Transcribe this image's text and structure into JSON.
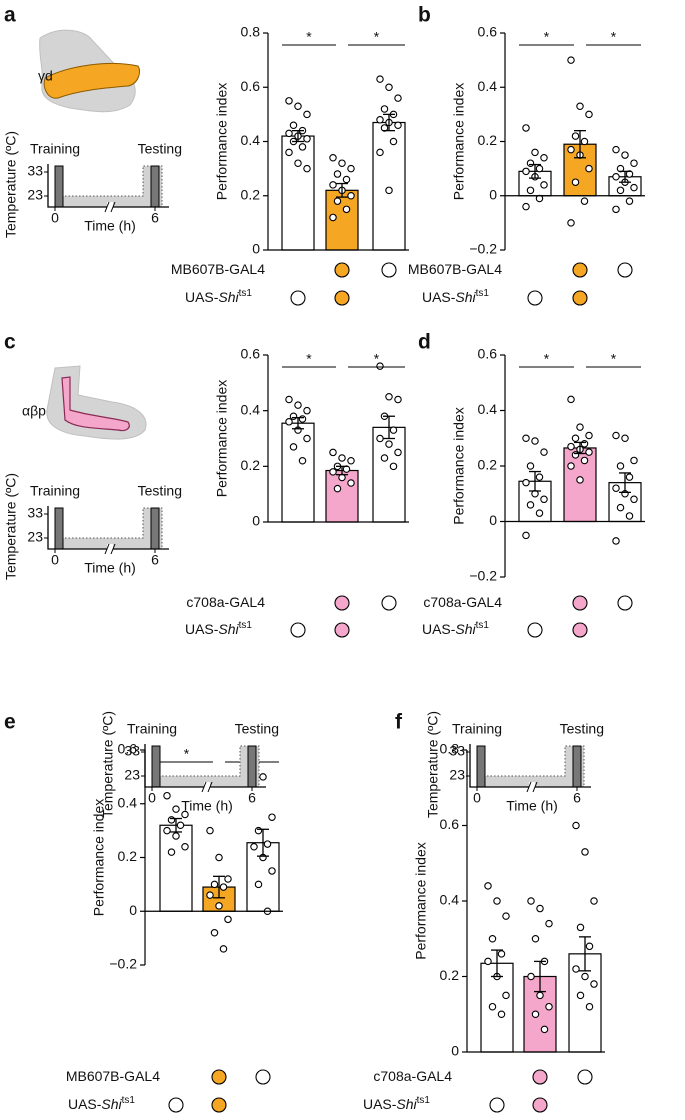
{
  "chart_data": [
    {
      "type": "bar",
      "panel": "a",
      "ylabel": "Performance index",
      "ylim": [
        0,
        0.8
      ],
      "yticks": [
        0,
        0.2,
        0.4,
        0.6,
        0.8
      ],
      "colors": [
        "#ffffff",
        "#f5a623",
        "#ffffff"
      ],
      "values": [
        0.42,
        0.22,
        0.47
      ],
      "errors": [
        0.02,
        0.025,
        0.03
      ],
      "points": [
        [
          0.55,
          0.53,
          0.5,
          0.46,
          0.44,
          0.43,
          0.42,
          0.41,
          0.4,
          0.38,
          0.36,
          0.32,
          0.3
        ],
        [
          0.34,
          0.32,
          0.3,
          0.28,
          0.26,
          0.24,
          0.22,
          0.2,
          0.18,
          0.15,
          0.12
        ],
        [
          0.63,
          0.6,
          0.56,
          0.52,
          0.5,
          0.48,
          0.47,
          0.46,
          0.45,
          0.4,
          0.36,
          0.22
        ]
      ],
      "significance": [
        {
          "pair": [
            0,
            1
          ],
          "label": "*"
        },
        {
          "pair": [
            1,
            2
          ],
          "label": "*"
        }
      ],
      "genotypes": [
        {
          "label_parts": [
            "MB607B-GAL4"
          ],
          "present": [
            false,
            true,
            true
          ]
        },
        {
          "label_parts": [
            "UAS-",
            "Shi",
            "ts1"
          ],
          "present": [
            true,
            true,
            false
          ]
        }
      ],
      "brain_label": "γd",
      "schematic": {
        "ylabel": "Temperature (ºC)",
        "xlabel": "Time (h)",
        "left": "Training",
        "right": "Testing",
        "yticks": [
          23,
          33
        ],
        "xticks": [
          0,
          6
        ]
      }
    },
    {
      "type": "bar",
      "panel": "b",
      "ylabel": "Performance index",
      "ylim": [
        -0.2,
        0.6
      ],
      "yticks": [
        {
          "value": -0.2,
          "label": "−0.2"
        },
        0,
        0.2,
        0.4,
        0.6
      ],
      "colors": [
        "#ffffff",
        "#f5a623",
        "#ffffff"
      ],
      "values": [
        0.09,
        0.19,
        0.07
      ],
      "errors": [
        0.025,
        0.05,
        0.02
      ],
      "points": [
        [
          0.25,
          0.16,
          0.14,
          0.12,
          0.1,
          0.09,
          0.07,
          0.04,
          0.02,
          -0.01,
          -0.04
        ],
        [
          0.5,
          0.33,
          0.3,
          0.22,
          0.2,
          0.17,
          0.15,
          0.1,
          0.05,
          -0.02,
          -0.1
        ],
        [
          0.17,
          0.15,
          0.12,
          0.1,
          0.08,
          0.07,
          0.05,
          0.03,
          0.02,
          -0.02,
          -0.05
        ]
      ],
      "significance": [
        {
          "pair": [
            0,
            1
          ],
          "label": "*"
        },
        {
          "pair": [
            1,
            2
          ],
          "label": "*"
        }
      ],
      "genotypes": [
        {
          "label_parts": [
            "MB607B-GAL4"
          ],
          "present": [
            false,
            true,
            true
          ]
        },
        {
          "label_parts": [
            "UAS-",
            "Shi",
            "ts1"
          ],
          "present": [
            true,
            true,
            false
          ]
        }
      ]
    },
    {
      "type": "bar",
      "panel": "c",
      "ylabel": "Performance index",
      "ylim": [
        0,
        0.6
      ],
      "yticks": [
        0,
        0.2,
        0.4,
        0.6
      ],
      "colors": [
        "#ffffff",
        "#f4a6cb",
        "#ffffff"
      ],
      "values": [
        0.355,
        0.185,
        0.34
      ],
      "errors": [
        0.02,
        0.015,
        0.04
      ],
      "points": [
        [
          0.44,
          0.42,
          0.4,
          0.38,
          0.37,
          0.36,
          0.33,
          0.3,
          0.27,
          0.22
        ],
        [
          0.25,
          0.23,
          0.22,
          0.2,
          0.19,
          0.18,
          0.16,
          0.14,
          0.12
        ],
        [
          0.56,
          0.45,
          0.44,
          0.38,
          0.33,
          0.3,
          0.28,
          0.25,
          0.23,
          0.2
        ]
      ],
      "significance": [
        {
          "pair": [
            0,
            1
          ],
          "label": "*"
        },
        {
          "pair": [
            1,
            2
          ],
          "label": "*"
        }
      ],
      "genotypes": [
        {
          "label_parts": [
            "c708a-GAL4"
          ],
          "present": [
            false,
            true,
            true
          ]
        },
        {
          "label_parts": [
            "UAS-",
            "Shi",
            "ts1"
          ],
          "present": [
            true,
            true,
            false
          ]
        }
      ],
      "brain_label": "αβp",
      "schematic": {
        "ylabel": "Temperature (ºC)",
        "xlabel": "Time (h)",
        "left": "Training",
        "right": "Testing",
        "yticks": [
          23,
          33
        ],
        "xticks": [
          0,
          6
        ]
      }
    },
    {
      "type": "bar",
      "panel": "d",
      "ylabel": "Performance index",
      "ylim": [
        -0.2,
        0.6
      ],
      "yticks": [
        {
          "value": -0.2,
          "label": "−0.2"
        },
        0,
        0.2,
        0.4,
        0.6
      ],
      "colors": [
        "#ffffff",
        "#f4a6cb",
        "#ffffff"
      ],
      "values": [
        0.145,
        0.265,
        0.14
      ],
      "errors": [
        0.035,
        0.02,
        0.035
      ],
      "points": [
        [
          0.3,
          0.29,
          0.25,
          0.2,
          0.16,
          0.14,
          0.1,
          0.08,
          0.06,
          0.03,
          -0.05
        ],
        [
          0.44,
          0.34,
          0.31,
          0.3,
          0.28,
          0.27,
          0.26,
          0.25,
          0.24,
          0.22,
          0.2,
          0.15
        ],
        [
          0.31,
          0.3,
          0.22,
          0.2,
          0.16,
          0.12,
          0.1,
          0.08,
          0.05,
          0.02,
          -0.07
        ]
      ],
      "significance": [
        {
          "pair": [
            0,
            1
          ],
          "label": "*"
        },
        {
          "pair": [
            1,
            2
          ],
          "label": "*"
        }
      ],
      "genotypes": [
        {
          "label_parts": [
            "c708a-GAL4"
          ],
          "present": [
            false,
            true,
            true
          ]
        },
        {
          "label_parts": [
            "UAS-",
            "Shi",
            "ts1"
          ],
          "present": [
            true,
            true,
            false
          ]
        }
      ]
    },
    {
      "type": "bar",
      "panel": "e",
      "ylabel": "Performance index",
      "ylim": [
        -0.2,
        0.6
      ],
      "yticks": [
        {
          "value": -0.2,
          "label": "−0.2"
        },
        0,
        0.2,
        0.4,
        0.6
      ],
      "colors": [
        "#ffffff",
        "#f5a623",
        "#ffffff"
      ],
      "values": [
        0.32,
        0.09,
        0.255
      ],
      "errors": [
        0.025,
        0.04,
        0.05
      ],
      "points": [
        [
          0.43,
          0.38,
          0.36,
          0.34,
          0.32,
          0.3,
          0.28,
          0.24,
          0.22
        ],
        [
          0.3,
          0.2,
          0.12,
          0.1,
          0.09,
          0.06,
          0.02,
          -0.03,
          -0.08,
          -0.14
        ],
        [
          0.52,
          0.5,
          0.35,
          0.3,
          0.25,
          0.24,
          0.2,
          0.15,
          0.1,
          0.0
        ]
      ],
      "significance": [
        {
          "pair": [
            0,
            1
          ],
          "label": "*"
        },
        {
          "pair": [
            1,
            2
          ],
          "label": "*"
        }
      ],
      "genotypes": [
        {
          "label_parts": [
            "MB607B-GAL4"
          ],
          "present": [
            false,
            true,
            true
          ]
        },
        {
          "label_parts": [
            "UAS-",
            "Shi",
            "ts1"
          ],
          "present": [
            true,
            true,
            false
          ]
        }
      ],
      "schematic": {
        "ylabel": "Temperature (ºC)",
        "xlabel": "Time (h)",
        "left": "Training",
        "right": "Testing",
        "yticks": [
          23,
          33
        ],
        "xticks": [
          0,
          6
        ]
      }
    },
    {
      "type": "bar",
      "panel": "f",
      "ylabel": "Performance index",
      "ylim": [
        0,
        0.8
      ],
      "yticks": [
        0,
        0.2,
        0.4,
        0.6,
        0.8
      ],
      "colors": [
        "#ffffff",
        "#f4a6cb",
        "#ffffff"
      ],
      "values": [
        0.235,
        0.2,
        0.26
      ],
      "errors": [
        0.035,
        0.04,
        0.045
      ],
      "points": [
        [
          0.44,
          0.4,
          0.36,
          0.3,
          0.26,
          0.24,
          0.2,
          0.15,
          0.12,
          0.1
        ],
        [
          0.4,
          0.38,
          0.34,
          0.3,
          0.24,
          0.2,
          0.15,
          0.12,
          0.1,
          0.06
        ],
        [
          0.6,
          0.53,
          0.4,
          0.33,
          0.28,
          0.22,
          0.2,
          0.18,
          0.15,
          0.12
        ]
      ],
      "significance": [],
      "genotypes": [
        {
          "label_parts": [
            "c708a-GAL4"
          ],
          "present": [
            false,
            true,
            true
          ]
        },
        {
          "label_parts": [
            "UAS-",
            "Shi",
            "ts1"
          ],
          "present": [
            true,
            true,
            false
          ]
        }
      ],
      "schematic": {
        "ylabel": "Temperature (ºC)",
        "xlabel": "Time (h)",
        "left": "Training",
        "right": "Testing",
        "yticks": [
          23,
          33
        ],
        "xticks": [
          0,
          6
        ]
      }
    }
  ]
}
